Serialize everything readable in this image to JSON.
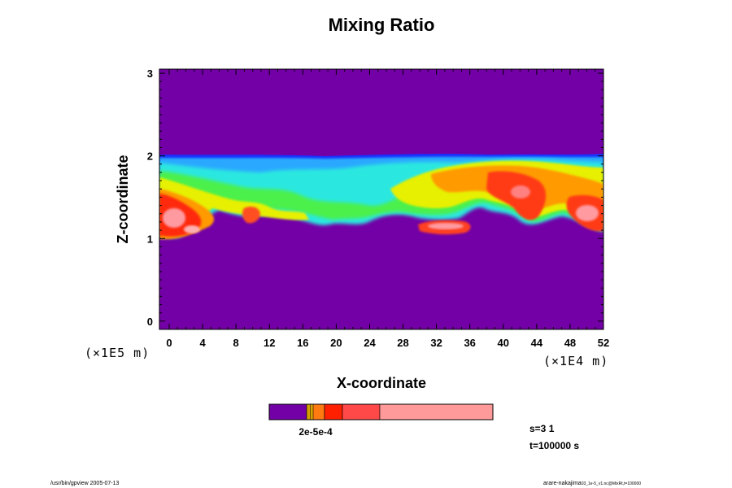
{
  "chart_data": {
    "type": "heatmap",
    "title": "Mixing Ratio",
    "xlabel": "X-coordinate",
    "ylabel": "Z-coordinate",
    "x_scale_label": "(×1E4 m)",
    "y_scale_label": "(×1E5 m)",
    "x_ticks": [
      "0",
      "4",
      "8",
      "12",
      "16",
      "20",
      "24",
      "28",
      "32",
      "36",
      "40",
      "44",
      "48",
      "52"
    ],
    "y_ticks": [
      "0",
      "1",
      "2",
      "3"
    ],
    "xlim": [
      0,
      52
    ],
    "ylim": [
      -0.1,
      3.05
    ],
    "background_color": "#7300a6",
    "colorbar": {
      "label": "2e-5e-4",
      "colors": [
        "#7300a6",
        "#d4a000",
        "#ffc000",
        "#ff7a10",
        "#ff2000",
        "#ff4848",
        "#ff9a9a"
      ]
    },
    "annotations": [
      "s=3 1",
      "t=100000 s"
    ]
  },
  "footer": {
    "left": "/usr/bin/gpview 2005-07-13",
    "right": "arare-nakajima",
    "right_sub": "03_1e-5_v1.nc@MixRt,t=100000"
  }
}
